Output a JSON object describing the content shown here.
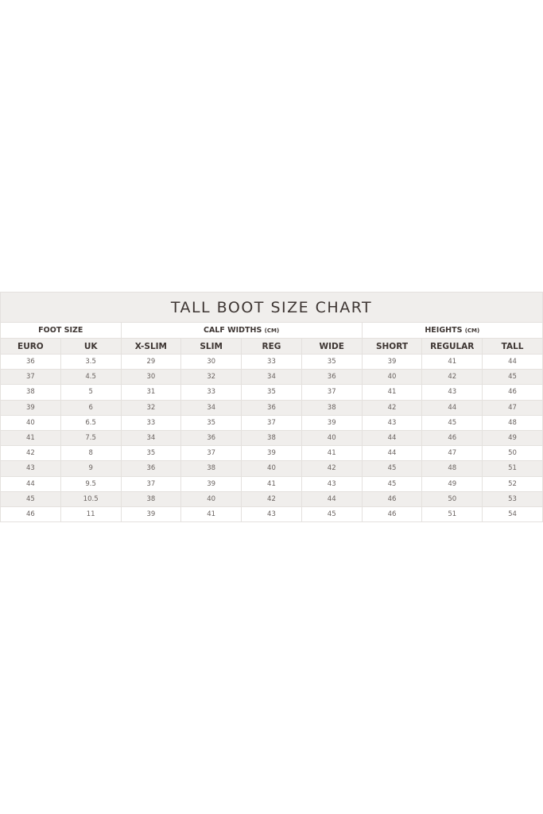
{
  "title": "TALL BOOT SIZE CHART",
  "groups": {
    "foot": "FOOT SIZE",
    "calf": "CALF WIDTHS",
    "calf_unit": "(CM)",
    "heights": "HEIGHTS",
    "heights_unit": "(CM)"
  },
  "columns": [
    "EURO",
    "UK",
    "X-SLIM",
    "SLIM",
    "REG",
    "WIDE",
    "SHORT",
    "REGULAR",
    "TALL"
  ],
  "rows": [
    [
      "36",
      "3.5",
      "29",
      "30",
      "33",
      "35",
      "39",
      "41",
      "44"
    ],
    [
      "37",
      "4.5",
      "30",
      "32",
      "34",
      "36",
      "40",
      "42",
      "45"
    ],
    [
      "38",
      "5",
      "31",
      "33",
      "35",
      "37",
      "41",
      "43",
      "46"
    ],
    [
      "39",
      "6",
      "32",
      "34",
      "36",
      "38",
      "42",
      "44",
      "47"
    ],
    [
      "40",
      "6.5",
      "33",
      "35",
      "37",
      "39",
      "43",
      "45",
      "48"
    ],
    [
      "41",
      "7.5",
      "34",
      "36",
      "38",
      "40",
      "44",
      "46",
      "49"
    ],
    [
      "42",
      "8",
      "35",
      "37",
      "39",
      "41",
      "44",
      "47",
      "50"
    ],
    [
      "43",
      "9",
      "36",
      "38",
      "40",
      "42",
      "45",
      "48",
      "51"
    ],
    [
      "44",
      "9.5",
      "37",
      "39",
      "41",
      "43",
      "45",
      "49",
      "52"
    ],
    [
      "45",
      "10.5",
      "38",
      "40",
      "42",
      "44",
      "46",
      "50",
      "53"
    ],
    [
      "46",
      "11",
      "39",
      "41",
      "43",
      "45",
      "46",
      "51",
      "54"
    ]
  ]
}
